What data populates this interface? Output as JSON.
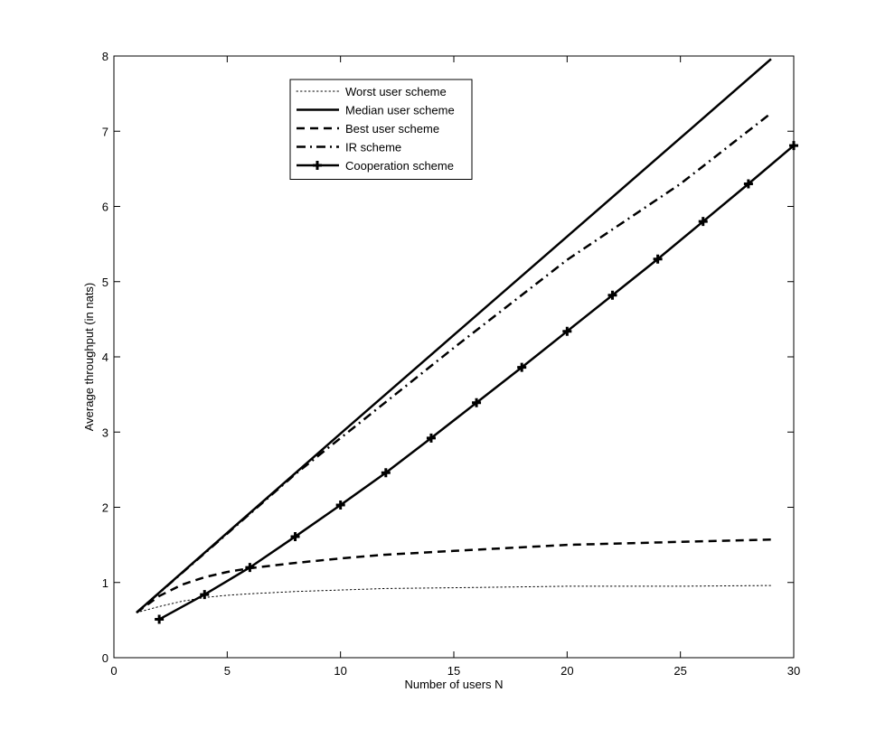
{
  "chart_data": {
    "type": "line",
    "title": "",
    "xlabel": "Number of users N",
    "ylabel": "Average throughput (in nats)",
    "xlim": [
      0,
      30
    ],
    "ylim": [
      0,
      8
    ],
    "xticks": [
      0,
      5,
      10,
      15,
      20,
      25,
      30
    ],
    "yticks": [
      0,
      1,
      2,
      3,
      4,
      5,
      6,
      7,
      8
    ],
    "grid": false,
    "legend_position": "top-left",
    "series": [
      {
        "name": "Worst user scheme",
        "style": "dotted",
        "color": "#000000",
        "x": [
          1,
          2,
          3,
          4,
          5,
          6,
          8,
          10,
          12,
          15,
          20,
          25,
          29
        ],
        "y": [
          0.6,
          0.68,
          0.75,
          0.8,
          0.83,
          0.85,
          0.88,
          0.9,
          0.92,
          0.93,
          0.95,
          0.95,
          0.96
        ]
      },
      {
        "name": "Median user scheme",
        "style": "solid",
        "color": "#000000",
        "x": [
          1,
          5,
          10,
          15,
          20,
          25,
          29
        ],
        "y": [
          0.6,
          1.66,
          2.98,
          4.29,
          5.6,
          6.91,
          7.96
        ]
      },
      {
        "name": "Best user scheme",
        "style": "dashed",
        "color": "#000000",
        "x": [
          1,
          2,
          3,
          4,
          5,
          6,
          8,
          10,
          12,
          15,
          20,
          25,
          29
        ],
        "y": [
          0.6,
          0.82,
          0.97,
          1.07,
          1.14,
          1.19,
          1.26,
          1.32,
          1.37,
          1.42,
          1.5,
          1.54,
          1.57
        ]
      },
      {
        "name": "IR scheme",
        "style": "dashdot",
        "color": "#000000",
        "x": [
          1,
          5,
          8,
          10,
          15,
          20,
          25,
          29
        ],
        "y": [
          0.6,
          1.65,
          2.44,
          2.92,
          4.12,
          5.29,
          6.3,
          7.24
        ]
      },
      {
        "name": "Cooperation scheme",
        "style": "solid-plus",
        "color": "#000000",
        "x": [
          2,
          4,
          6,
          8,
          10,
          12,
          14,
          16,
          18,
          20,
          22,
          24,
          26,
          28,
          30
        ],
        "y": [
          0.51,
          0.84,
          1.2,
          1.61,
          2.03,
          2.46,
          2.92,
          3.39,
          3.86,
          4.34,
          4.82,
          5.3,
          5.8,
          6.3,
          6.81
        ]
      }
    ]
  }
}
